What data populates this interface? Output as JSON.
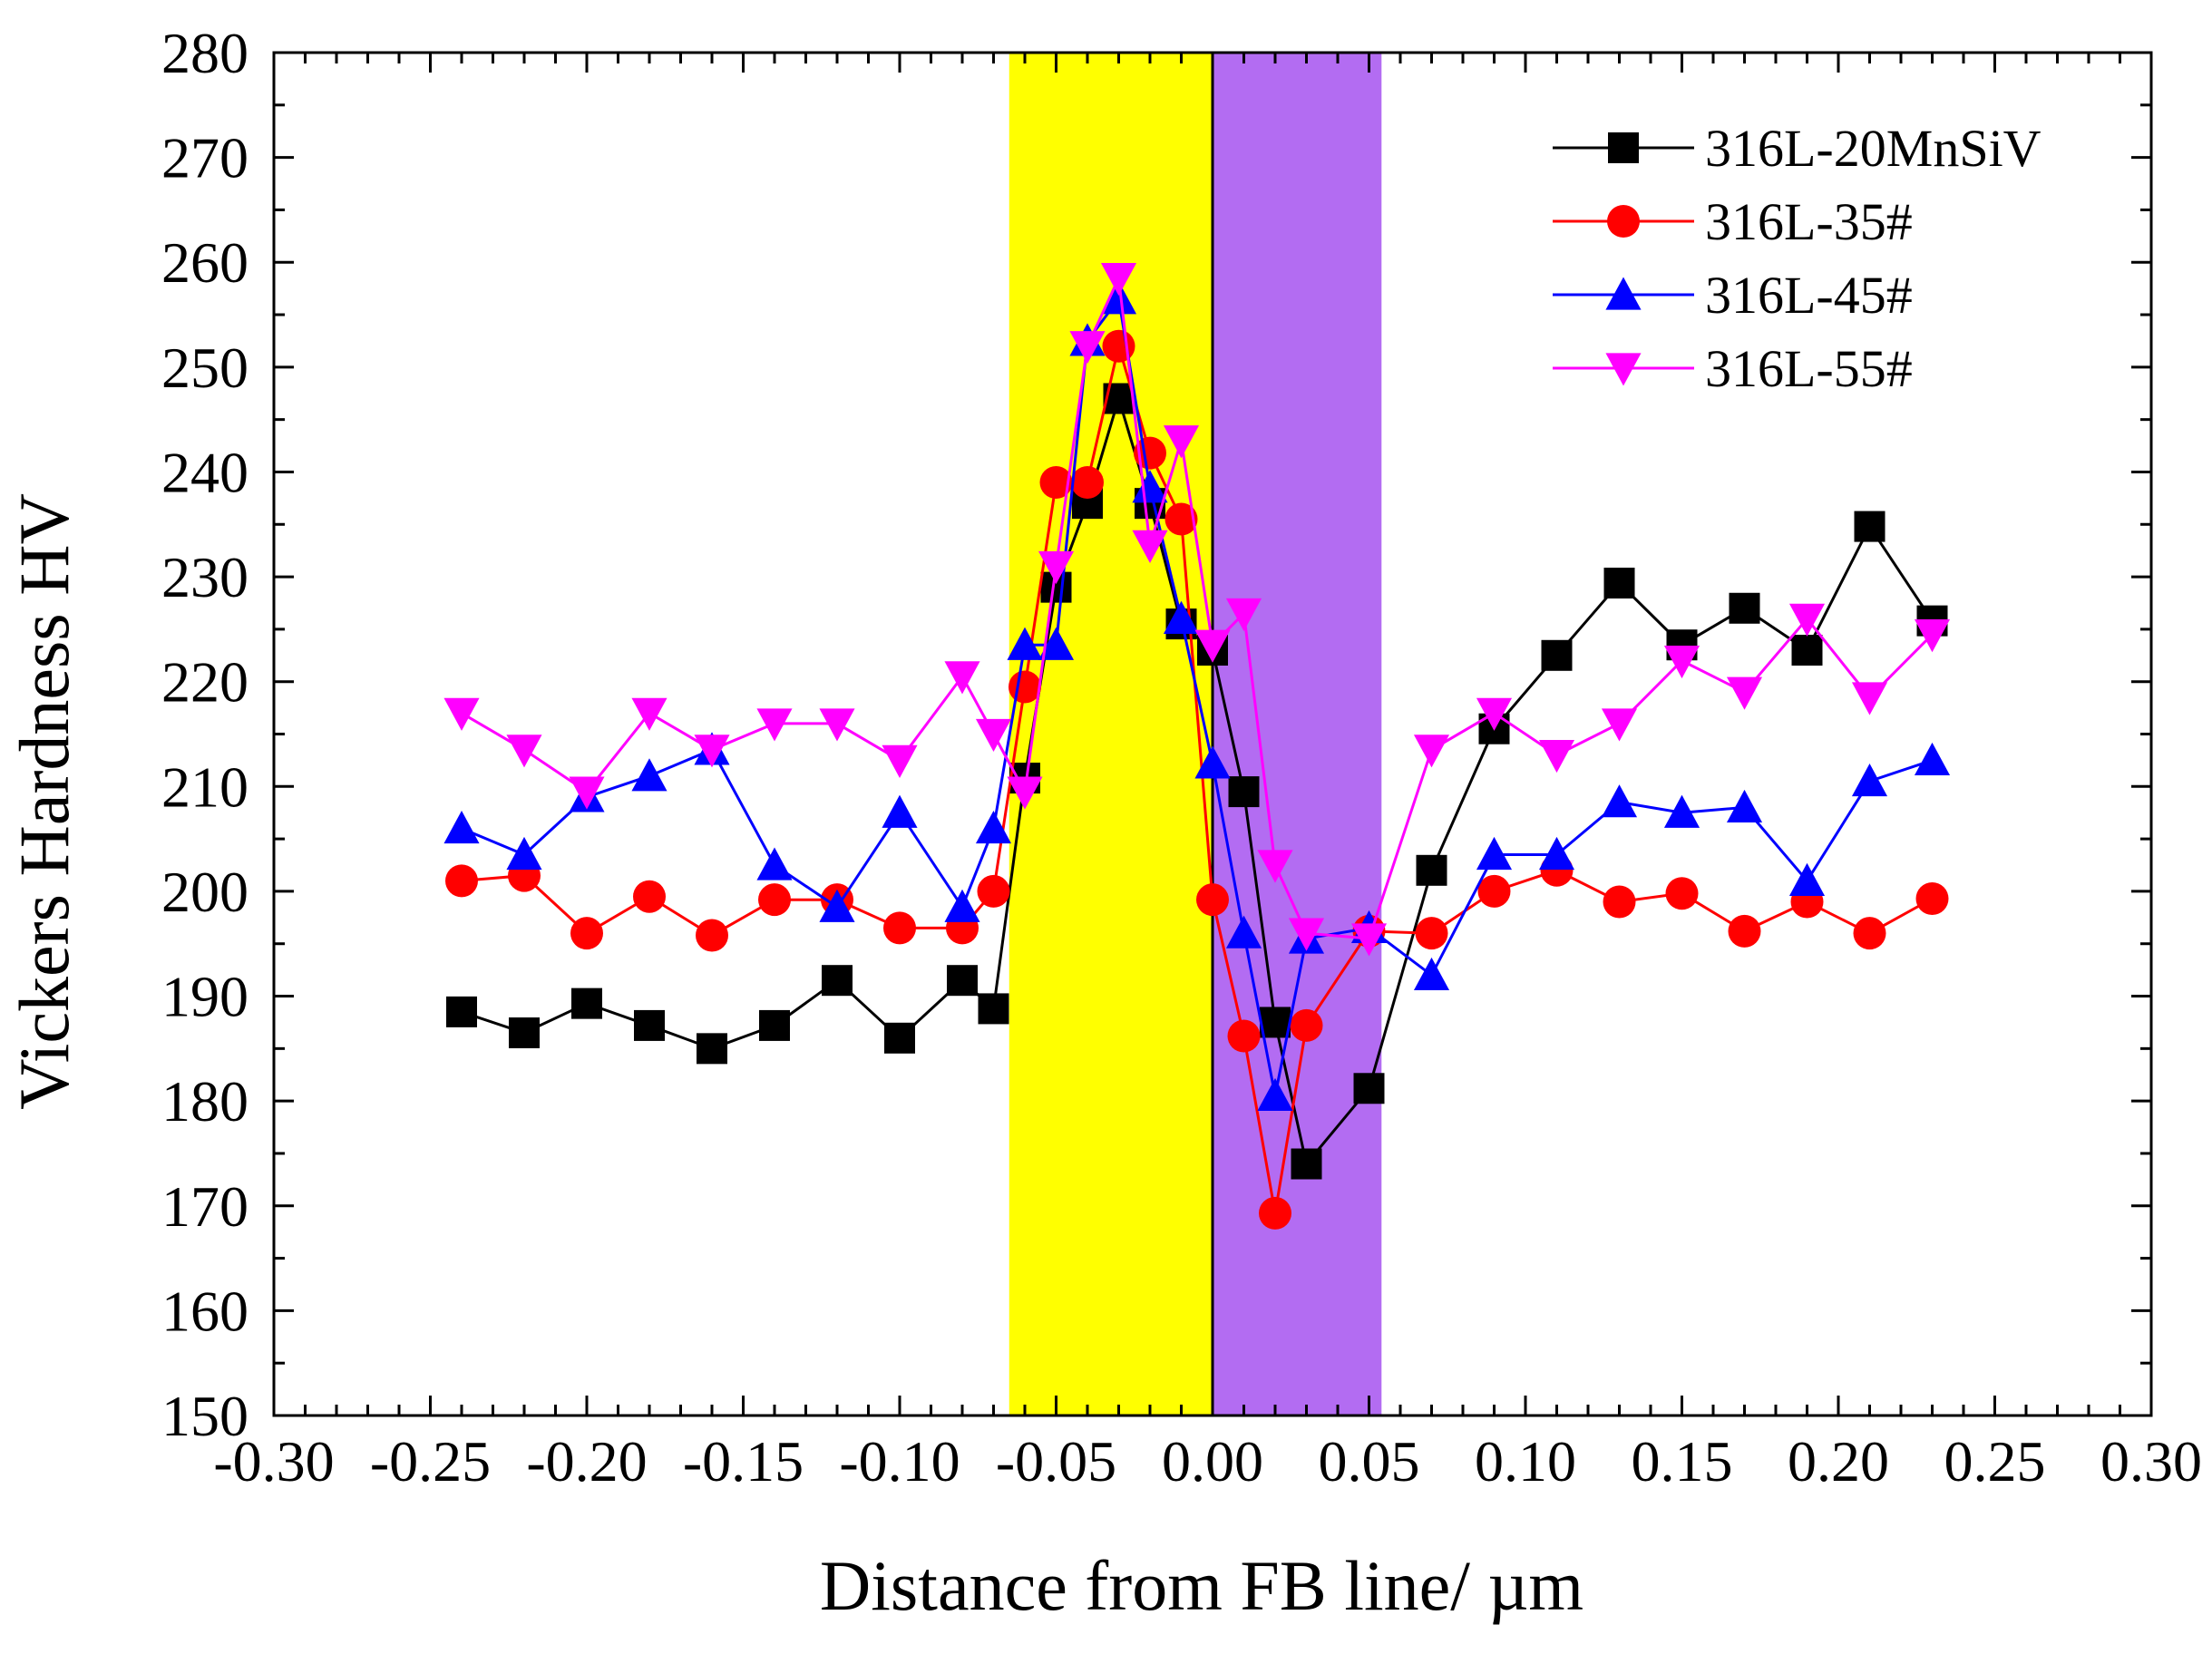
{
  "chart_data": {
    "type": "line",
    "title": "",
    "xlabel": "Distance from FB line/ µm",
    "ylabel": "Vickers Hardness HV",
    "xlim": [
      -0.3,
      0.3
    ],
    "ylim": [
      150,
      280
    ],
    "x_ticks": [
      -0.3,
      -0.25,
      -0.2,
      -0.15,
      -0.1,
      -0.05,
      0.0,
      0.05,
      0.1,
      0.15,
      0.2,
      0.25,
      0.3
    ],
    "x_tick_labels": [
      "-0.30",
      "-0.25",
      "-0.20",
      "-0.15",
      "-0.10",
      "-0.05",
      "0.00",
      "0.05",
      "0.10",
      "0.15",
      "0.20",
      "0.25",
      "0.30"
    ],
    "y_ticks": [
      150,
      160,
      170,
      180,
      190,
      200,
      210,
      220,
      230,
      240,
      250,
      260,
      270,
      280
    ],
    "y_tick_labels": [
      "150",
      "160",
      "170",
      "180",
      "190",
      "200",
      "210",
      "220",
      "230",
      "240",
      "250",
      "260",
      "270",
      "280"
    ],
    "grid": false,
    "legend_position": "top-right",
    "shaded_regions": [
      {
        "name": "yellow-zone",
        "x_start": -0.065,
        "x_end": 0.0,
        "color": "#ffff00"
      },
      {
        "name": "purple-zone",
        "x_start": 0.0,
        "x_end": 0.054,
        "color": "#b36cf2"
      }
    ],
    "vertical_line": {
      "x": 0.0,
      "color": "#000000"
    },
    "series": [
      {
        "name": "316L-20MnSiV",
        "color": "#000000",
        "marker": "square",
        "x": [
          -0.24,
          -0.22,
          -0.2,
          -0.18,
          -0.16,
          -0.14,
          -0.12,
          -0.1,
          -0.08,
          -0.07,
          -0.06,
          -0.05,
          -0.04,
          -0.03,
          -0.02,
          -0.01,
          0.0,
          0.01,
          0.02,
          0.03,
          0.05,
          0.07,
          0.09,
          0.11,
          0.13,
          0.15,
          0.17,
          0.19,
          0.21,
          0.23
        ],
        "values": [
          188.5,
          186.5,
          189.3,
          187.2,
          185.0,
          187.2,
          191.5,
          186.0,
          191.5,
          188.8,
          210.8,
          229.0,
          237.0,
          247.0,
          237.0,
          225.5,
          223.0,
          209.5,
          187.5,
          174.0,
          181.2,
          202.0,
          215.5,
          222.5,
          229.4,
          223.5,
          227.0,
          223.0,
          234.8,
          225.8
        ]
      },
      {
        "name": "316L-35#",
        "color": "#ff0000",
        "marker": "circle",
        "x": [
          -0.24,
          -0.22,
          -0.2,
          -0.18,
          -0.16,
          -0.14,
          -0.12,
          -0.1,
          -0.08,
          -0.07,
          -0.06,
          -0.05,
          -0.04,
          -0.03,
          -0.02,
          -0.01,
          0.0,
          0.01,
          0.02,
          0.03,
          0.05,
          0.07,
          0.09,
          0.11,
          0.13,
          0.15,
          0.17,
          0.19,
          0.21,
          0.23
        ],
        "values": [
          201.0,
          201.5,
          196.0,
          199.5,
          195.8,
          199.2,
          199.2,
          196.5,
          196.5,
          200.0,
          219.5,
          239.0,
          239.0,
          252.0,
          241.8,
          235.5,
          199.2,
          186.2,
          169.3,
          187.2,
          196.2,
          196.0,
          200.0,
          202.0,
          199.0,
          199.8,
          196.2,
          199.0,
          196.0,
          199.3
        ]
      },
      {
        "name": "316L-45#",
        "color": "#0000ff",
        "marker": "triangle-up",
        "x": [
          -0.24,
          -0.22,
          -0.2,
          -0.18,
          -0.16,
          -0.14,
          -0.12,
          -0.1,
          -0.08,
          -0.07,
          -0.06,
          -0.05,
          -0.04,
          -0.03,
          -0.02,
          -0.01,
          0.0,
          0.01,
          0.02,
          0.03,
          0.05,
          0.07,
          0.09,
          0.11,
          0.13,
          0.15,
          0.17,
          0.19,
          0.21,
          0.23
        ],
        "values": [
          206.0,
          203.5,
          209.0,
          211.0,
          213.5,
          202.5,
          198.5,
          207.5,
          198.5,
          206.0,
          223.5,
          223.5,
          252.5,
          256.5,
          238.5,
          226.0,
          212.2,
          196.0,
          180.5,
          195.5,
          196.5,
          192.0,
          203.5,
          203.5,
          208.5,
          207.5,
          208.0,
          201.0,
          210.5,
          212.5
        ]
      },
      {
        "name": "316L-55#",
        "color": "#ff00ff",
        "marker": "triangle-down",
        "x": [
          -0.24,
          -0.22,
          -0.2,
          -0.18,
          -0.16,
          -0.14,
          -0.12,
          -0.1,
          -0.08,
          -0.07,
          -0.06,
          -0.05,
          -0.04,
          -0.03,
          -0.02,
          -0.01,
          0.0,
          0.01,
          0.02,
          0.03,
          0.05,
          0.07,
          0.09,
          0.11,
          0.13,
          0.15,
          0.17,
          0.19,
          0.21,
          0.23
        ],
        "values": [
          217.0,
          213.5,
          209.5,
          217.0,
          213.5,
          216.0,
          216.0,
          212.5,
          220.5,
          215.0,
          209.5,
          231.0,
          252.0,
          258.5,
          233.0,
          243.0,
          223.5,
          226.5,
          202.5,
          196.0,
          195.5,
          213.5,
          217.0,
          213.0,
          216.0,
          222.0,
          219.0,
          226.0,
          218.5,
          224.5
        ]
      }
    ]
  }
}
